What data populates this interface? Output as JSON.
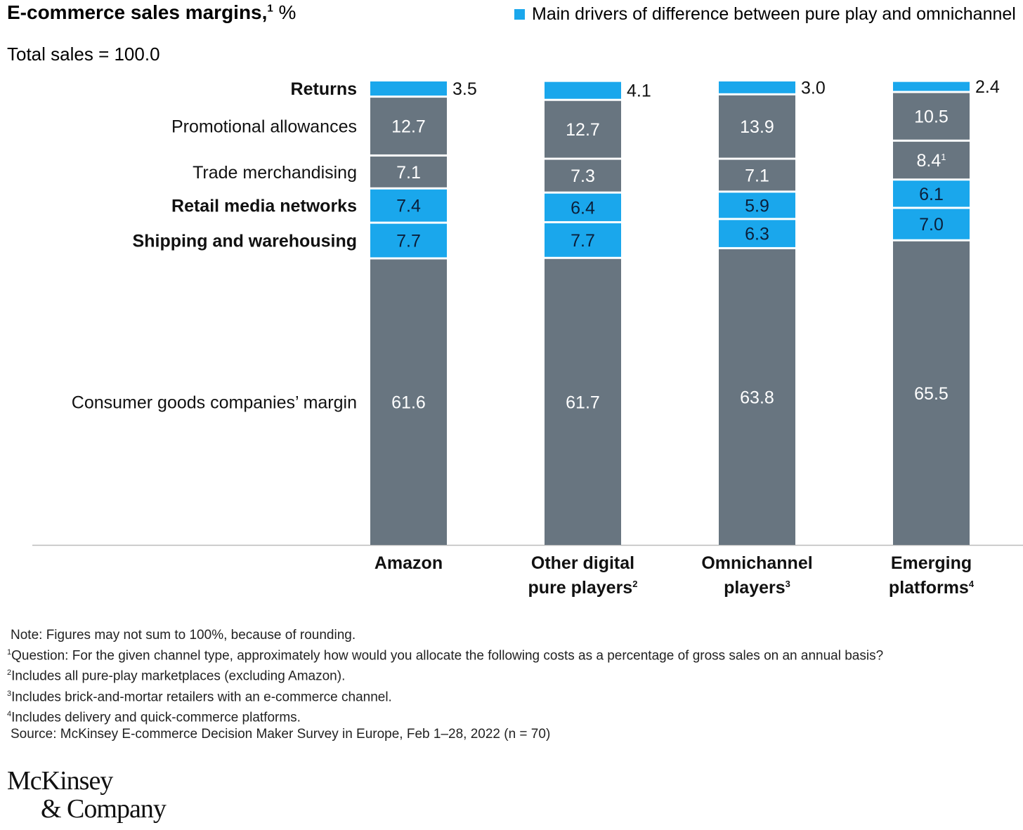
{
  "header": {
    "title": "E-commerce sales margins,",
    "title_sup": "1",
    "unit": "%",
    "subtitle": "Total sales = 100.0"
  },
  "legend": {
    "label": "Main drivers of difference between pure play and omnichannel",
    "color": "#1aa7ec"
  },
  "chart_data": {
    "type": "bar",
    "stacked": true,
    "title": "E-commerce sales margins, %",
    "ylim": [
      0,
      100
    ],
    "categories": [
      {
        "label": "Amazon",
        "sup": ""
      },
      {
        "label": "Other digital pure players",
        "lines": [
          "Other digital",
          "pure players"
        ],
        "sup": "2"
      },
      {
        "label": "Omnichannel players",
        "lines": [
          "Omnichannel",
          "players"
        ],
        "sup": "3"
      },
      {
        "label": "Emerging platforms",
        "lines": [
          "Emerging",
          "platforms"
        ],
        "sup": "4"
      }
    ],
    "series": [
      {
        "name": "Consumer goods companies’ margin",
        "driver": false,
        "values": [
          61.6,
          61.7,
          63.8,
          65.5
        ]
      },
      {
        "name": "Shipping and warehousing",
        "driver": true,
        "values": [
          7.7,
          7.7,
          6.3,
          7.0
        ]
      },
      {
        "name": "Retail media networks",
        "driver": true,
        "values": [
          7.4,
          6.4,
          5.9,
          6.1
        ]
      },
      {
        "name": "Trade merchandising",
        "driver": false,
        "values": [
          7.1,
          7.3,
          7.1,
          8.4
        ],
        "sups": [
          "",
          "",
          "",
          "1"
        ]
      },
      {
        "name": "Promotional allowances",
        "driver": false,
        "values": [
          12.7,
          12.7,
          13.9,
          10.5
        ]
      },
      {
        "name": "Returns",
        "driver": true,
        "values": [
          3.5,
          4.1,
          3.0,
          2.4
        ]
      }
    ],
    "colors": {
      "driver": "#1aa7ec",
      "other": "#687580",
      "axis": "#bbbbbb"
    }
  },
  "notes": [
    {
      "sup": "",
      "text": "Note: Figures may not sum to 100%, because of rounding."
    },
    {
      "sup": "1",
      "text": "Question: For the given channel type, approximately how would you allocate the following costs as a percentage of gross sales on an annual basis?"
    },
    {
      "sup": "2",
      "text": "Includes all pure-play marketplaces (excluding Amazon)."
    },
    {
      "sup": "3",
      "text": "Includes brick-and-mortar retailers with an e-commerce channel."
    },
    {
      "sup": "4",
      "text": "Includes delivery and quick-commerce platforms."
    },
    {
      "sup": "",
      "text": "Source: McKinsey E-commerce Decision Maker Survey in Europe, Feb 1–28, 2022 (n = 70)"
    }
  ],
  "logo": {
    "line1": "McKinsey",
    "line2": "& Company"
  }
}
